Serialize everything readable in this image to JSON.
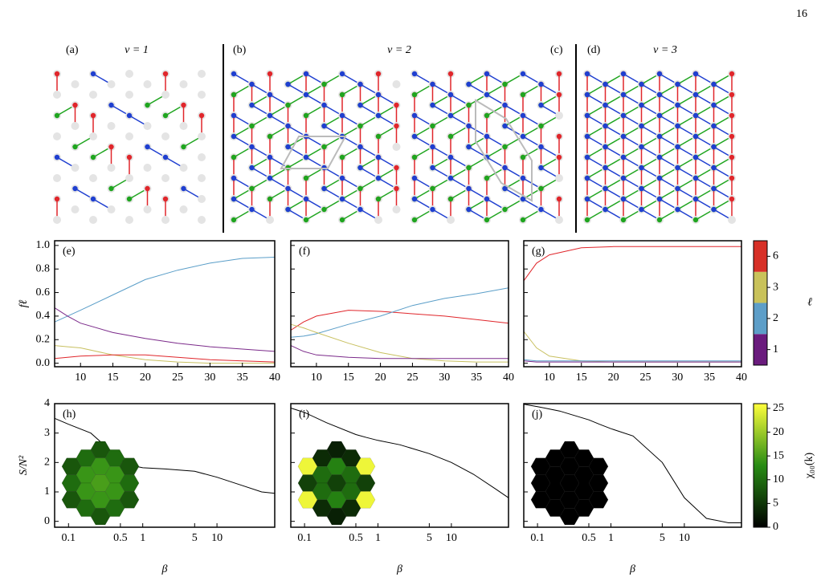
{
  "page_number": "16",
  "lattice_panels": [
    {
      "label": "(a)"
    },
    {
      "label": "(b)"
    },
    {
      "label": "(c)"
    },
    {
      "label": "(d)"
    }
  ],
  "nu_labels": [
    "ν = 1",
    "ν = 2",
    "ν = 3"
  ],
  "chart_data": [
    {
      "type": "line",
      "title": "(e)",
      "ylabel": "fℓ",
      "show_ytick_labels": true,
      "x": [
        6,
        8,
        10,
        15,
        20,
        25,
        30,
        35,
        40
      ],
      "xlim": [
        6,
        40
      ],
      "xticks": [
        10,
        15,
        20,
        25,
        30,
        35,
        40
      ],
      "ylim": [
        -0.03,
        1.04
      ],
      "yticks": [
        {
          "value": 0,
          "label": "0.0"
        },
        0.2,
        0.4,
        0.6,
        0.8,
        {
          "value": 1,
          "label": "1.0"
        }
      ],
      "series": [
        {
          "color": "#5a9ec8",
          "values": [
            0.35,
            0.4,
            0.45,
            0.58,
            0.71,
            0.79,
            0.85,
            0.89,
            0.9
          ]
        },
        {
          "color": "#7b2a8a",
          "values": [
            0.47,
            0.4,
            0.34,
            0.26,
            0.21,
            0.17,
            0.14,
            0.12,
            0.1
          ]
        },
        {
          "color": "#c8c060",
          "values": [
            0.15,
            0.14,
            0.13,
            0.07,
            0.03,
            0.01,
            0,
            0,
            0
          ]
        },
        {
          "color": "#e0262b",
          "values": [
            0.04,
            0.05,
            0.06,
            0.07,
            0.07,
            0.05,
            0.03,
            0.02,
            0.01
          ]
        }
      ]
    },
    {
      "type": "line",
      "title": "(f)",
      "show_ytick_labels": false,
      "x": [
        6,
        8,
        10,
        15,
        20,
        25,
        30,
        35,
        40
      ],
      "xlim": [
        6,
        40
      ],
      "xticks": [
        10,
        15,
        20,
        25,
        30,
        35,
        40
      ],
      "ylim": [
        -0.03,
        1.04
      ],
      "yticks": [
        0,
        0.2,
        0.4,
        0.6,
        0.8,
        1
      ],
      "series": [
        {
          "color": "#e0262b",
          "values": [
            0.28,
            0.35,
            0.4,
            0.45,
            0.44,
            0.42,
            0.4,
            0.37,
            0.34
          ]
        },
        {
          "color": "#5a9ec8",
          "values": [
            0.22,
            0.23,
            0.25,
            0.33,
            0.4,
            0.49,
            0.55,
            0.59,
            0.64
          ]
        },
        {
          "color": "#c8c060",
          "values": [
            0.33,
            0.3,
            0.26,
            0.17,
            0.09,
            0.04,
            0.02,
            0.01,
            0.01
          ]
        },
        {
          "color": "#7b2a8a",
          "values": [
            0.15,
            0.1,
            0.07,
            0.05,
            0.04,
            0.04,
            0.04,
            0.04,
            0.04
          ]
        }
      ]
    },
    {
      "type": "line",
      "title": "(g)",
      "show_ytick_labels": false,
      "x": [
        6,
        8,
        10,
        15,
        20,
        25,
        30,
        35,
        40
      ],
      "xlim": [
        6,
        40
      ],
      "xticks": [
        10,
        15,
        20,
        25,
        30,
        35,
        40
      ],
      "ylim": [
        -0.03,
        1.04
      ],
      "yticks": [
        0,
        0.2,
        0.4,
        0.6,
        0.8,
        1
      ],
      "series": [
        {
          "color": "#e0262b",
          "values": [
            0.7,
            0.85,
            0.92,
            0.98,
            0.99,
            0.99,
            0.99,
            0.99,
            0.99
          ]
        },
        {
          "color": "#c8c060",
          "values": [
            0.27,
            0.13,
            0.06,
            0.02,
            0.01,
            0.01,
            0.01,
            0.01,
            0.01
          ]
        },
        {
          "color": "#5a9ec8",
          "values": [
            0.03,
            0.02,
            0.02,
            0.02,
            0.02,
            0.02,
            0.02,
            0.02,
            0.02
          ]
        },
        {
          "color": "#7b2a8a",
          "values": [
            0.02,
            0.01,
            0.01,
            0.01,
            0.01,
            0.01,
            0.01,
            0.01,
            0.01
          ]
        }
      ]
    },
    {
      "type": "line",
      "title": "(h)",
      "ylabel": "S/N²",
      "xlabel": "β",
      "log_x": true,
      "show_ytick_labels": true,
      "x": [
        0.065,
        0.1,
        0.2,
        0.5,
        0.7,
        1,
        2,
        5,
        10,
        20,
        40,
        60
      ],
      "xlim": [
        0.065,
        60
      ],
      "xticks": [
        0.1,
        0.5,
        1,
        5,
        10
      ],
      "ylim": [
        -0.2,
        4
      ],
      "yticks": [
        0,
        1,
        2,
        3,
        4
      ],
      "series": [
        {
          "color": "#000000",
          "values": [
            3.5,
            3.3,
            3.0,
            2.1,
            1.9,
            1.82,
            1.78,
            1.7,
            1.5,
            1.25,
            1.0,
            0.95
          ]
        }
      ],
      "inset": {
        "values": [
          8,
          10,
          8,
          10,
          14,
          14,
          10,
          8,
          14,
          15,
          14,
          8,
          10,
          14,
          14,
          10,
          8,
          10,
          8
        ]
      }
    },
    {
      "type": "line",
      "title": "(i)",
      "xlabel": "β",
      "log_x": true,
      "show_ytick_labels": false,
      "x": [
        0.065,
        0.1,
        0.2,
        0.5,
        0.7,
        1,
        2,
        5,
        10,
        20,
        40,
        60
      ],
      "xlim": [
        0.065,
        60
      ],
      "xticks": [
        0.1,
        0.5,
        1,
        5,
        10
      ],
      "ylim": [
        -0.2,
        4
      ],
      "yticks": [
        0,
        1,
        2,
        3,
        4
      ],
      "series": [
        {
          "color": "#000000",
          "values": [
            3.85,
            3.7,
            3.35,
            2.95,
            2.85,
            2.75,
            2.6,
            2.3,
            2.0,
            1.6,
            1.1,
            0.8
          ]
        }
      ],
      "inset": {
        "values": [
          25,
          6,
          25,
          4,
          10,
          10,
          4,
          3,
          12,
          6,
          12,
          3,
          4,
          10,
          10,
          4,
          25,
          6,
          25
        ]
      }
    },
    {
      "type": "line",
      "title": "(j)",
      "xlabel": "β",
      "log_x": true,
      "show_ytick_labels": false,
      "x": [
        0.065,
        0.1,
        0.2,
        0.5,
        0.7,
        1,
        2,
        5,
        10,
        20,
        40,
        60
      ],
      "xlim": [
        0.065,
        60
      ],
      "xticks": [
        0.1,
        0.5,
        1,
        5,
        10
      ],
      "ylim": [
        -0.2,
        4
      ],
      "yticks": [
        0,
        1,
        2,
        3,
        4
      ],
      "series": [
        {
          "color": "#000000",
          "values": [
            3.98,
            3.9,
            3.75,
            3.45,
            3.3,
            3.15,
            2.9,
            2.0,
            0.8,
            0.1,
            -0.05,
            -0.05
          ]
        }
      ],
      "inset": {
        "values": [
          0,
          0,
          0,
          0,
          0,
          0,
          0,
          0,
          0,
          0,
          0,
          0,
          0,
          0,
          0,
          0,
          0,
          0,
          0
        ]
      }
    }
  ],
  "colorbars": [
    {
      "label": "ℓ",
      "categories": [
        "1",
        "2",
        "3",
        "6"
      ],
      "colors": [
        "#6a1b7d",
        "#5d9ec8",
        "#c9c25a",
        "#d73027"
      ]
    },
    {
      "label": "χ₀₀(k)",
      "lim": [
        0,
        26
      ],
      "ticks": [
        0,
        5,
        10,
        15,
        20,
        25
      ]
    }
  ]
}
